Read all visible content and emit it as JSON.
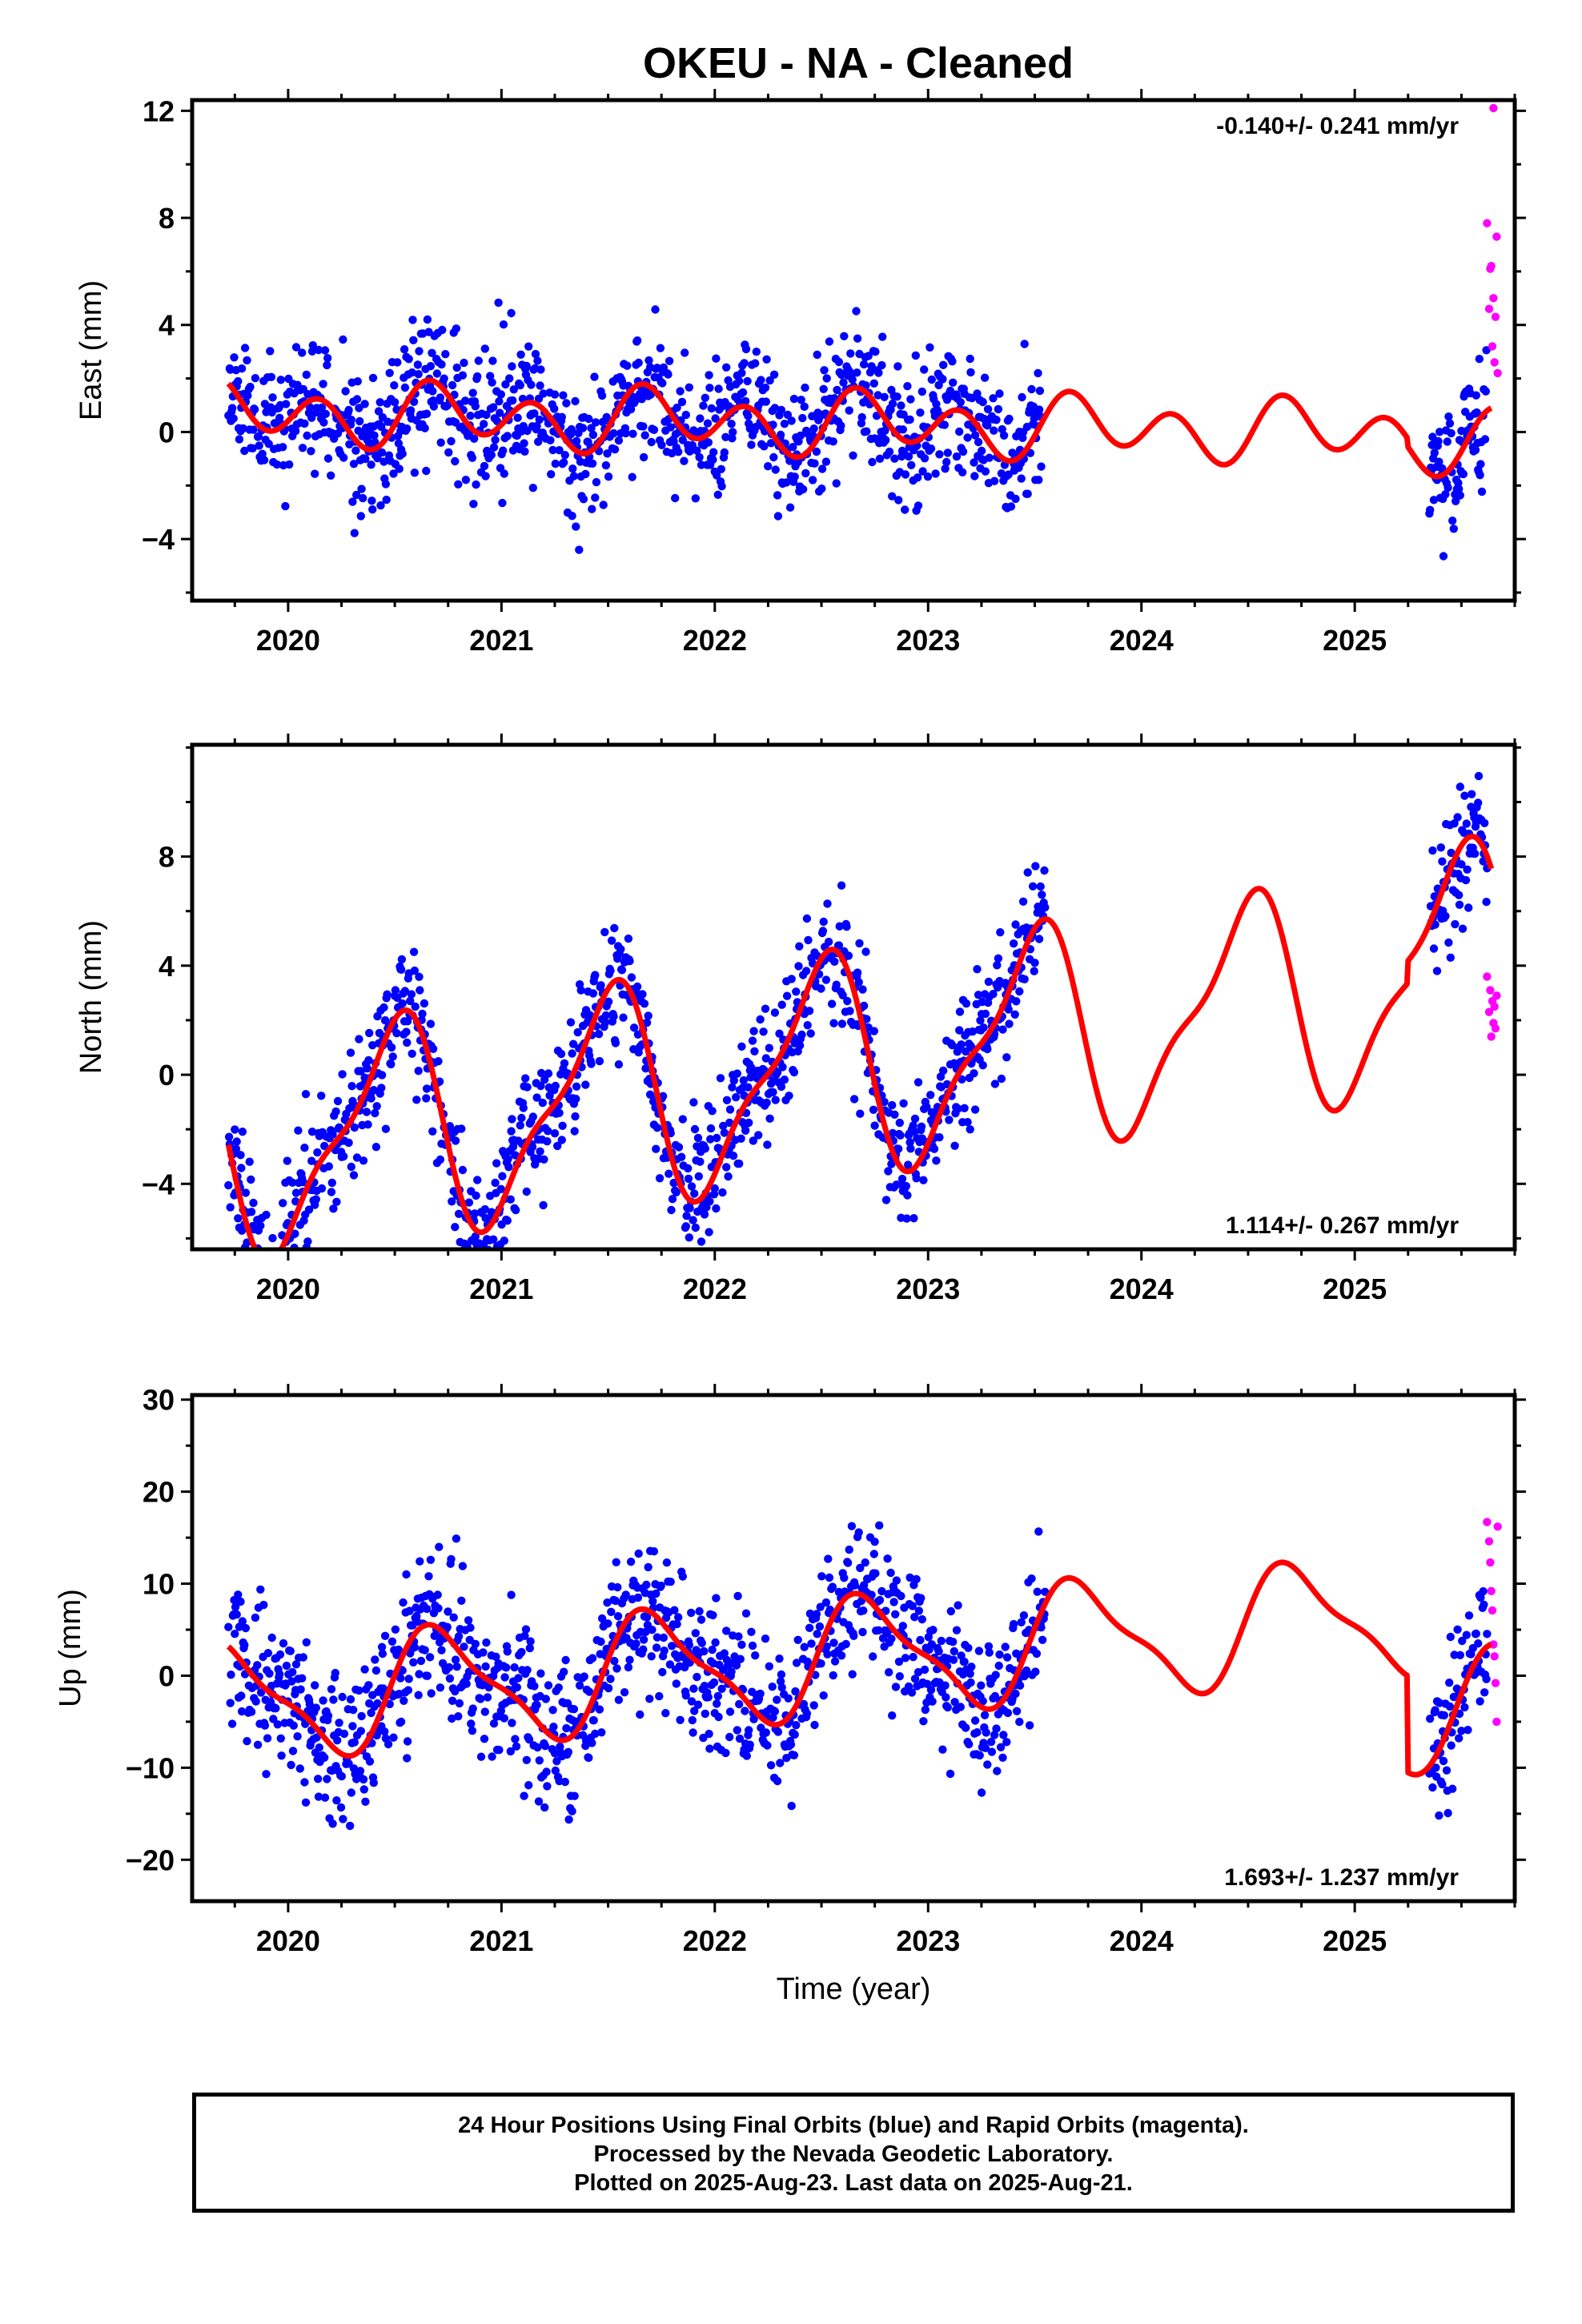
{
  "chart_data": [
    {
      "type": "scatter",
      "title": "OKEU  - NA - Cleaned",
      "ylabel": "East (mm)",
      "xlabel": "",
      "xlim": [
        2019.55,
        2025.75
      ],
      "ylim": [
        -6.3,
        12.4
      ],
      "xticks": [
        2020,
        2021,
        2022,
        2023,
        2024,
        2025
      ],
      "xtick_labels": [
        "2020",
        "2021",
        "2022",
        "2023",
        "2024",
        "2025"
      ],
      "yticks": [
        -4,
        0,
        4,
        8,
        12
      ],
      "ytick_labels": [
        "−4",
        "0",
        "4",
        "8",
        "12"
      ],
      "rate_label": "-0.140+/- 0.241 mm/yr",
      "rate_position": "top-right",
      "grid": false,
      "series": [
        {
          "role": "final",
          "color": "#0000ff",
          "marker": "dot",
          "gen": {
            "start": 2019.72,
            "end": 2023.53,
            "step": 0.003,
            "seed": 11,
            "scatter": 1.25,
            "gap": [
              2025.95,
              2025.96
            ],
            "extra": [
              {
                "start": 2025.35,
                "end": 2025.62,
                "step": 0.003
              }
            ]
          }
        },
        {
          "role": "rapid",
          "color": "#ff00ff",
          "marker": "dot",
          "points": [
            [
              2025.62,
              7.8
            ],
            [
              2025.63,
              4.6
            ],
            [
              2025.635,
              6.1
            ],
            [
              2025.64,
              6.2
            ],
            [
              2025.645,
              3.2
            ],
            [
              2025.65,
              5.0
            ],
            [
              2025.655,
              2.6
            ],
            [
              2025.66,
              4.3
            ],
            [
              2025.665,
              7.3
            ],
            [
              2025.67,
              2.2
            ],
            [
              2025.65,
              12.1
            ]
          ]
        }
      ],
      "model": {
        "color": "#ff0000",
        "x0": 2019.72,
        "x1": 2025.64,
        "offset": 0.3,
        "trend": -0.14,
        "ref": 2022.7,
        "a1": 0.5,
        "p1": 0.76,
        "a2": 0.95,
        "p2": 0.15,
        "a3": 0.0,
        "p3": 0.0,
        "break": {
          "at": 2025.25,
          "shift": -0.3
        },
        "end_shift": 0.0
      }
    },
    {
      "type": "scatter",
      "title": "",
      "ylabel": "North (mm)",
      "xlabel": "",
      "xlim": [
        2019.55,
        2025.75
      ],
      "ylim": [
        -6.4,
        12.1
      ],
      "xticks": [
        2020,
        2021,
        2022,
        2023,
        2024,
        2025
      ],
      "xtick_labels": [
        "2020",
        "2021",
        "2022",
        "2023",
        "2024",
        "2025"
      ],
      "yticks": [
        -4,
        0,
        4,
        8
      ],
      "ytick_labels": [
        "−4",
        "0",
        "4",
        "8"
      ],
      "rate_label": "1.114+/- 0.267 mm/yr",
      "rate_position": "bottom-right",
      "grid": false,
      "series": [
        {
          "role": "final",
          "color": "#0000ff",
          "marker": "dot",
          "gen": {
            "start": 2019.72,
            "end": 2023.55,
            "step": 0.003,
            "seed": 23,
            "scatter": 1.15,
            "gap": [
              2025.95,
              2025.96
            ],
            "extra": [
              {
                "start": 2025.35,
                "end": 2025.62,
                "step": 0.003
              }
            ]
          }
        },
        {
          "role": "rapid",
          "color": "#ff00ff",
          "marker": "dot",
          "points": [
            [
              2025.62,
              3.6
            ],
            [
              2025.63,
              2.3
            ],
            [
              2025.635,
              3.1
            ],
            [
              2025.64,
              1.4
            ],
            [
              2025.645,
              2.7
            ],
            [
              2025.65,
              1.9
            ],
            [
              2025.655,
              2.5
            ],
            [
              2025.66,
              1.7
            ],
            [
              2025.665,
              2.9
            ]
          ]
        }
      ],
      "model": {
        "color": "#ff0000",
        "x0": 2019.72,
        "x1": 2025.64,
        "offset": 0.0,
        "trend": 1.114,
        "ref": 2022.3,
        "a1": 3.7,
        "p1": 0.48,
        "a2": 1.2,
        "p2": 0.6,
        "a3": 0.0,
        "p3": 0.0,
        "break": {
          "at": 2025.25,
          "shift": 0.8
        },
        "end_shift": 0.0
      }
    },
    {
      "type": "scatter",
      "title": "",
      "ylabel": "Up (mm)",
      "xlabel": "Time (year)",
      "xlim": [
        2019.55,
        2025.75
      ],
      "ylim": [
        -24.5,
        30.5
      ],
      "xticks": [
        2020,
        2021,
        2022,
        2023,
        2024,
        2025
      ],
      "xtick_labels": [
        "2020",
        "2021",
        "2022",
        "2023",
        "2024",
        "2025"
      ],
      "yticks": [
        -20,
        -10,
        0,
        10,
        20,
        30
      ],
      "ytick_labels": [
        "−20",
        "−10",
        "0",
        "10",
        "20",
        "30"
      ],
      "rate_label": "1.693+/- 1.237 mm/yr",
      "rate_position": "bottom-right",
      "grid": false,
      "series": [
        {
          "role": "final",
          "color": "#0000ff",
          "marker": "dot",
          "gen": {
            "start": 2019.72,
            "end": 2023.55,
            "step": 0.003,
            "seed": 37,
            "scatter": 3.9,
            "gap": [
              2025.95,
              2025.96
            ],
            "extra": [
              {
                "start": 2025.35,
                "end": 2025.62,
                "step": 0.003
              }
            ]
          }
        },
        {
          "role": "rapid",
          "color": "#ff00ff",
          "marker": "dot",
          "points": [
            [
              2025.62,
              16.7
            ],
            [
              2025.63,
              14.6
            ],
            [
              2025.635,
              12.3
            ],
            [
              2025.64,
              9.2
            ],
            [
              2025.645,
              7.1
            ],
            [
              2025.65,
              3.4
            ],
            [
              2025.655,
              2.1
            ],
            [
              2025.66,
              -0.8
            ],
            [
              2025.665,
              -5.0
            ],
            [
              2025.67,
              16.2
            ]
          ]
        }
      ],
      "model": {
        "color": "#ff0000",
        "x0": 2019.72,
        "x1": 2025.64,
        "offset": 1.6,
        "trend": 1.693,
        "ref": 2022.4,
        "a1": 6.0,
        "p1": 0.72,
        "a2": 1.8,
        "p2": 0.1,
        "a3": 0.0,
        "p3": 0.0,
        "break": {
          "at": 2025.25,
          "shift": -10.5
        },
        "end_shift": 0.0
      }
    }
  ],
  "caption": {
    "line1": "24 Hour Positions Using Final Orbits (blue) and Rapid Orbits (magenta).",
    "line2": "Processed by the Nevada Geodetic Laboratory.",
    "line3": "Plotted on 2025-Aug-23. Last data on 2025-Aug-21."
  }
}
